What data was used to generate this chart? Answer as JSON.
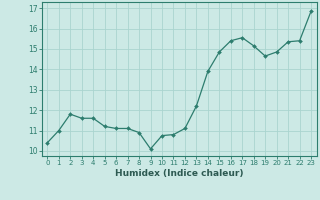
{
  "x": [
    0,
    1,
    2,
    3,
    4,
    5,
    6,
    7,
    8,
    9,
    10,
    11,
    12,
    13,
    14,
    15,
    16,
    17,
    18,
    19,
    20,
    21,
    22,
    23
  ],
  "y": [
    10.4,
    11.0,
    11.8,
    11.6,
    11.6,
    11.2,
    11.1,
    11.1,
    10.9,
    10.1,
    10.75,
    10.8,
    11.1,
    12.2,
    13.9,
    14.85,
    15.4,
    15.55,
    15.15,
    14.65,
    14.85,
    15.35,
    15.4,
    16.85
  ],
  "line_color": "#2d7d6e",
  "marker": "D",
  "marker_size": 2.0,
  "bg_color": "#cce9e5",
  "grid_color": "#aad4cf",
  "xlabel": "Humidex (Indice chaleur)",
  "ylabel_ticks": [
    10,
    11,
    12,
    13,
    14,
    15,
    16,
    17
  ],
  "xlim": [
    -0.5,
    23.5
  ],
  "ylim": [
    9.75,
    17.3
  ],
  "tick_color": "#2d7d6e",
  "label_color": "#2d5a52",
  "spine_color": "#2d7d6e",
  "xtick_fontsize": 5.0,
  "ytick_fontsize": 5.5,
  "xlabel_fontsize": 6.5
}
